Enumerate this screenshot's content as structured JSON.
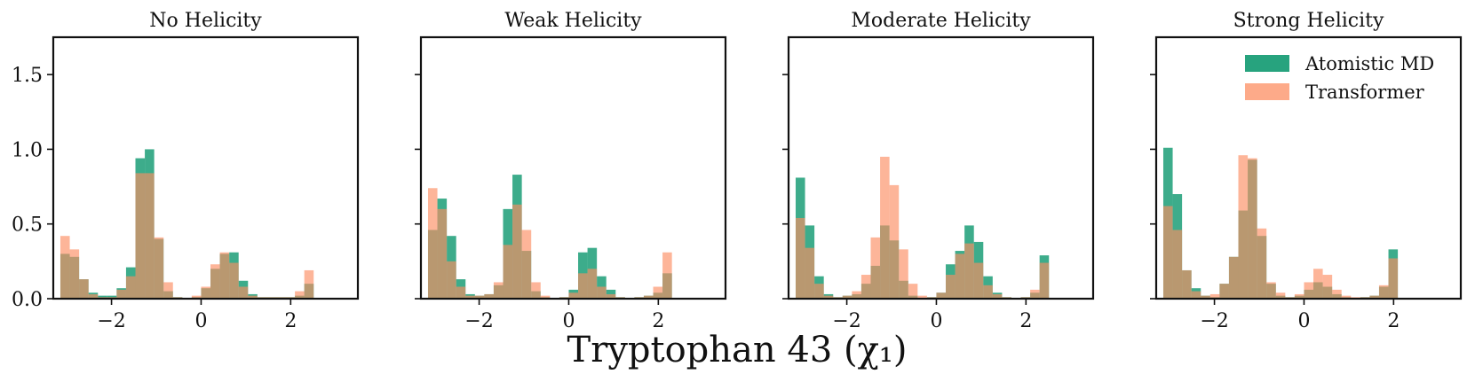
{
  "chart_data": {
    "type": "bar",
    "xlabel": "Tryptophan 43 (χ₁)",
    "xlim": [
      -3.3,
      3.5
    ],
    "ylim": [
      0,
      1.75
    ],
    "xticks": [
      -2,
      0,
      2
    ],
    "xtick_labels": [
      "−2",
      "0",
      "2"
    ],
    "yticks": [
      0.0,
      0.5,
      1.0,
      1.5
    ],
    "ytick_labels": [
      "0.0",
      "0.5",
      "1.0",
      "1.5"
    ],
    "bin_start": -3.14159,
    "bin_width": 0.20944,
    "legend": {
      "position": "top-right",
      "entries": [
        "Atomistic MD",
        "Transformer"
      ]
    },
    "colors": {
      "md": "#1b9e77",
      "transformer": "#fc8d62",
      "overlap": "#8c6d4a"
    },
    "panels": [
      {
        "title": "No Helicity",
        "series": [
          {
            "name": "Atomistic MD",
            "values": [
              0.3,
              0.28,
              0.13,
              0.04,
              0.02,
              0.02,
              0.07,
              0.21,
              0.94,
              1.0,
              0.4,
              0.05,
              0.01,
              0.0,
              0.01,
              0.07,
              0.2,
              0.3,
              0.31,
              0.12,
              0.03,
              0.01,
              0.01,
              0.01,
              0.01,
              0.02,
              0.1,
              0.0,
              0.0,
              0.0
            ]
          },
          {
            "name": "Transformer",
            "values": [
              0.42,
              0.33,
              0.13,
              0.03,
              0.01,
              0.01,
              0.06,
              0.15,
              0.84,
              0.84,
              0.41,
              0.11,
              0.01,
              0.0,
              0.02,
              0.08,
              0.23,
              0.31,
              0.24,
              0.08,
              0.02,
              0.01,
              0.01,
              0.01,
              0.01,
              0.05,
              0.19,
              0.0,
              0.0,
              0.0
            ]
          }
        ]
      },
      {
        "title": "Weak Helicity",
        "series": [
          {
            "name": "Atomistic MD",
            "values": [
              0.46,
              0.67,
              0.42,
              0.13,
              0.03,
              0.02,
              0.03,
              0.09,
              0.6,
              0.83,
              0.32,
              0.05,
              0.01,
              0.0,
              0.01,
              0.06,
              0.31,
              0.34,
              0.15,
              0.06,
              0.01,
              0.0,
              0.01,
              0.02,
              0.04,
              0.17,
              0.0,
              0.0,
              0.0,
              0.0
            ]
          },
          {
            "name": "Transformer",
            "values": [
              0.74,
              0.6,
              0.25,
              0.08,
              0.02,
              0.02,
              0.03,
              0.11,
              0.36,
              0.63,
              0.46,
              0.11,
              0.02,
              0.0,
              0.01,
              0.04,
              0.17,
              0.2,
              0.08,
              0.03,
              0.01,
              0.0,
              0.01,
              0.02,
              0.08,
              0.31,
              0.0,
              0.0,
              0.0,
              0.0
            ]
          }
        ]
      },
      {
        "title": "Moderate Helicity",
        "series": [
          {
            "name": "Atomistic MD",
            "values": [
              0.81,
              0.49,
              0.15,
              0.03,
              0.01,
              0.02,
              0.03,
              0.1,
              0.22,
              0.49,
              0.39,
              0.12,
              0.02,
              0.0,
              0.01,
              0.04,
              0.23,
              0.32,
              0.49,
              0.38,
              0.15,
              0.04,
              0.01,
              0.0,
              0.01,
              0.04,
              0.29,
              0.0,
              0.0,
              0.0
            ]
          },
          {
            "name": "Transformer",
            "values": [
              0.54,
              0.34,
              0.1,
              0.02,
              0.01,
              0.02,
              0.05,
              0.16,
              0.41,
              0.95,
              0.76,
              0.33,
              0.1,
              0.02,
              0.01,
              0.04,
              0.16,
              0.3,
              0.37,
              0.24,
              0.09,
              0.03,
              0.01,
              0.0,
              0.01,
              0.06,
              0.24,
              0.0,
              0.0,
              0.0
            ]
          }
        ]
      },
      {
        "title": "Strong Helicity",
        "series": [
          {
            "name": "Atomistic MD",
            "values": [
              1.01,
              0.7,
              0.19,
              0.07,
              0.02,
              0.01,
              0.1,
              0.28,
              0.59,
              0.93,
              0.42,
              0.1,
              0.02,
              0.01,
              0.02,
              0.06,
              0.11,
              0.08,
              0.03,
              0.01,
              0.0,
              0.01,
              0.02,
              0.08,
              0.33,
              0.0,
              0.0,
              0.0,
              0.0,
              0.0
            ]
          },
          {
            "name": "Transformer",
            "values": [
              0.62,
              0.46,
              0.19,
              0.05,
              0.02,
              0.03,
              0.1,
              0.28,
              0.96,
              0.94,
              0.47,
              0.11,
              0.04,
              0.01,
              0.03,
              0.11,
              0.2,
              0.16,
              0.06,
              0.02,
              0.01,
              0.01,
              0.02,
              0.09,
              0.27,
              0.0,
              0.0,
              0.0,
              0.0,
              0.0
            ]
          }
        ]
      }
    ]
  }
}
